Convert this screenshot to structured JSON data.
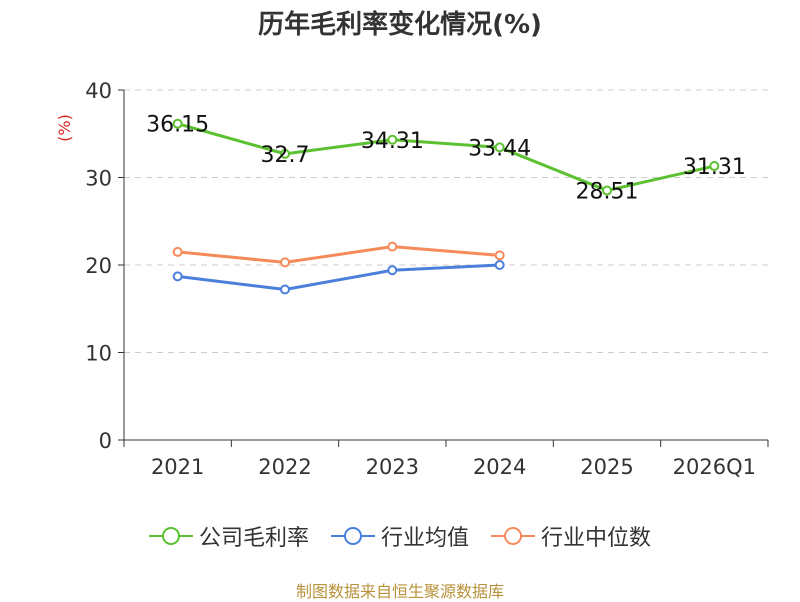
{
  "colors": {
    "company": "#5cc130",
    "avg": "#4a7fdc",
    "median": "#f58b5b",
    "axis": "#333333",
    "grid": "#cccccc",
    "unit": "#d62728"
  },
  "chart_data": {
    "type": "line",
    "title": "历年毛利率变化情况(%)",
    "ylabel": "(%)",
    "xlabel": "",
    "categories": [
      "2021",
      "2022",
      "2023",
      "2024",
      "2025",
      "2026Q1"
    ],
    "ylim": [
      0,
      40
    ],
    "yticks": [
      0,
      10,
      20,
      30,
      40
    ],
    "grid": true,
    "legend_position": "bottom",
    "series": [
      {
        "name": "公司毛利率",
        "color_key": "company",
        "values": [
          36.15,
          32.7,
          34.31,
          33.44,
          28.51,
          31.31
        ],
        "labels": [
          "36.15",
          "32.7",
          "34.31",
          "33.44",
          "28.51",
          "31.31"
        ]
      },
      {
        "name": "行业均值",
        "color_key": "avg",
        "values": [
          18.7,
          17.2,
          19.4,
          20.0,
          null,
          null
        ]
      },
      {
        "name": "行业中位数",
        "color_key": "median",
        "values": [
          21.5,
          20.3,
          22.1,
          21.1,
          null,
          null
        ]
      }
    ]
  },
  "source": "制图数据来自恒生聚源数据库"
}
